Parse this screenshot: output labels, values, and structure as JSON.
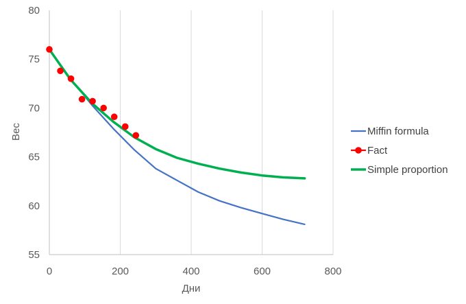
{
  "chart_data": {
    "type": "line",
    "xlabel": "Дни",
    "ylabel": "Вес",
    "xlim": [
      0,
      800
    ],
    "ylim": [
      55,
      80
    ],
    "x_ticks": [
      "0",
      "200",
      "400",
      "600",
      "800"
    ],
    "y_ticks": [
      "55",
      "60",
      "65",
      "70",
      "75",
      "80"
    ],
    "grid": "vertical",
    "legend_position": "right",
    "series": [
      {
        "name": "Miffin formula",
        "color": "#4472C4",
        "style": "line",
        "x": [
          0,
          60,
          120,
          180,
          240,
          300,
          360,
          420,
          480,
          540,
          600,
          660,
          720
        ],
        "y": [
          76.0,
          73.0,
          70.3,
          67.9,
          65.7,
          63.8,
          62.6,
          61.4,
          60.5,
          59.8,
          59.2,
          58.6,
          58.1
        ]
      },
      {
        "name": "Fact",
        "color": "#FF0000",
        "style": "markers",
        "x": [
          0,
          31,
          61,
          92,
          122,
          153,
          183,
          214,
          244
        ],
        "y": [
          76.0,
          73.8,
          73.0,
          70.9,
          70.7,
          70.0,
          69.1,
          68.1,
          67.2
        ]
      },
      {
        "name": "Simple proportion",
        "color": "#00B050",
        "style": "line",
        "x": [
          0,
          60,
          120,
          180,
          240,
          300,
          360,
          420,
          480,
          540,
          600,
          660,
          720
        ],
        "y": [
          76.0,
          72.9,
          70.5,
          68.6,
          67.0,
          65.8,
          64.9,
          64.3,
          63.8,
          63.4,
          63.1,
          62.9,
          62.8
        ]
      }
    ]
  }
}
